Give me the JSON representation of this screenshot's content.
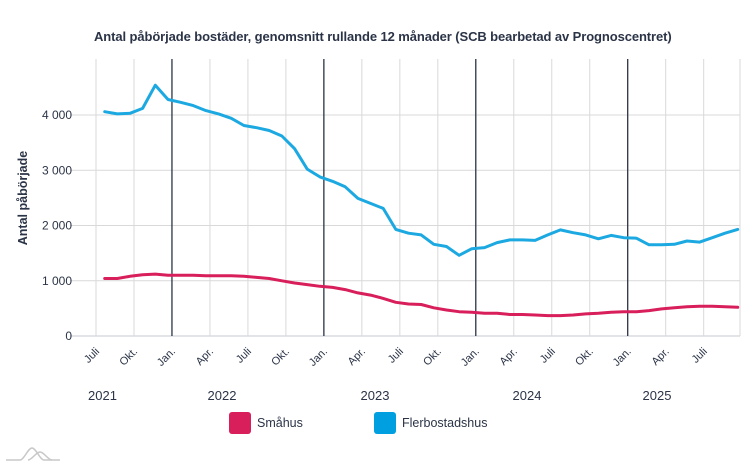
{
  "chart_data": {
    "type": "line",
    "title": "Antal påbörjade bostäder, genomsnitt rullande 12 månader (SCB bearbetad av Prognoscentret)",
    "xlabel": "",
    "ylabel": "Antal påbörjade",
    "ylim": [
      0,
      4800
    ],
    "yticks": [
      0,
      1000,
      2000,
      3000,
      4000
    ],
    "ytick_labels": [
      "0",
      "1 000",
      "2 000",
      "3 000",
      "4 000"
    ],
    "grid": true,
    "x_start": "2021-08",
    "x_axis_range": [
      "2021-07",
      "2025-11"
    ],
    "month_tick_labels": [
      "Juli",
      "Okt.",
      "Jan.",
      "Apr.",
      "Juli",
      "Okt.",
      "Jan.",
      "Apr.",
      "Juli",
      "Okt.",
      "Jan.",
      "Apr.",
      "Juli",
      "Okt.",
      "Jan.",
      "Apr.",
      "Juli"
    ],
    "year_labels": [
      "2021",
      "2022",
      "2023",
      "2024",
      "2025"
    ],
    "year_dividers": [
      "2022-01",
      "2023-01",
      "2024-01",
      "2025-01"
    ],
    "legend_position": "bottom",
    "series": [
      {
        "name": "Småhus",
        "color": "#d81e5b",
        "values": [
          1040,
          1040,
          1080,
          1110,
          1120,
          1100,
          1100,
          1100,
          1090,
          1090,
          1090,
          1080,
          1060,
          1040,
          1000,
          960,
          930,
          900,
          880,
          840,
          780,
          740,
          680,
          610,
          580,
          570,
          510,
          470,
          440,
          430,
          410,
          410,
          390,
          390,
          380,
          370,
          370,
          380,
          400,
          410,
          430,
          440,
          440,
          460,
          490,
          510,
          530,
          540,
          540,
          530,
          520
        ]
      },
      {
        "name": "Flerbostadshus",
        "color": "#1ca9e1",
        "values": [
          4060,
          4020,
          4030,
          4120,
          4540,
          4280,
          4230,
          4170,
          4080,
          4020,
          3940,
          3810,
          3770,
          3720,
          3620,
          3390,
          3020,
          2880,
          2800,
          2700,
          2490,
          2400,
          2310,
          1930,
          1860,
          1830,
          1660,
          1620,
          1460,
          1580,
          1600,
          1690,
          1740,
          1740,
          1730,
          1830,
          1920,
          1870,
          1830,
          1760,
          1820,
          1780,
          1770,
          1650,
          1650,
          1660,
          1720,
          1700,
          1780,
          1860,
          1930
        ]
      }
    ]
  },
  "legend": {
    "items": [
      {
        "label": "Småhus",
        "color": "#d81e5b"
      },
      {
        "label": "Flerbostadshus",
        "color": "#009fdf"
      }
    ]
  },
  "colors": {
    "text": "#2b3447",
    "grid": "#d9d9d9",
    "divider": "#1c2538"
  }
}
